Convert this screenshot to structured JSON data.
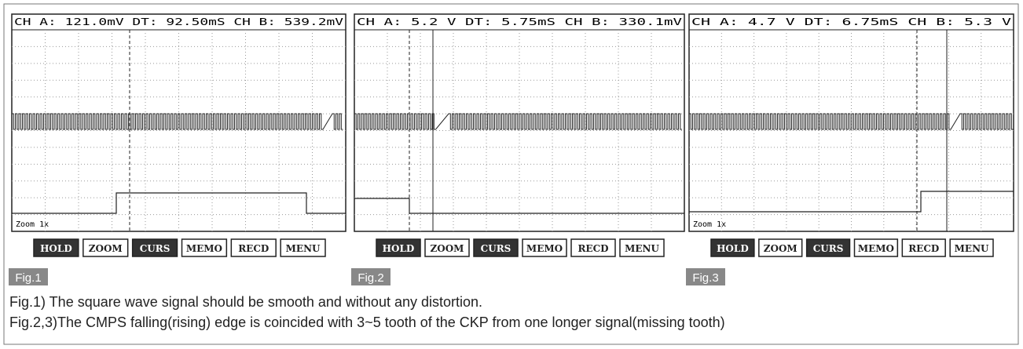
{
  "figures": [
    {
      "header": "CH A: 121.0mV DT:  92.50mS CH B: 539.2mV",
      "zoom": "Zoom 1x",
      "buttons": [
        "HOLD",
        "ZOOM",
        "CURS",
        "MEMO",
        "RECD",
        "MENU"
      ],
      "label": "Fig.1"
    },
    {
      "header": "CH A:   5.2 V DT:   5.75mS CH B: 330.1mV",
      "buttons": [
        "HOLD",
        "ZOOM",
        "CURS",
        "MEMO",
        "RECD",
        "MENU"
      ],
      "label": "Fig.2"
    },
    {
      "header": "CH A:   4.7 V DT:   6.75mS CH B:   5.3 V",
      "zoom": "Zoom 1x",
      "buttons": [
        "HOLD",
        "ZOOM",
        "CURS",
        "MEMO",
        "RECD",
        "MENU"
      ],
      "label": "Fig.3"
    }
  ],
  "caption": [
    "Fig.1) The square wave signal should be smooth and without any distortion.",
    "Fig.2,3)The CMPS falling(rising) edge is coincided with 3~5 tooth of the CKP from one longer signal(missing tooth)"
  ]
}
